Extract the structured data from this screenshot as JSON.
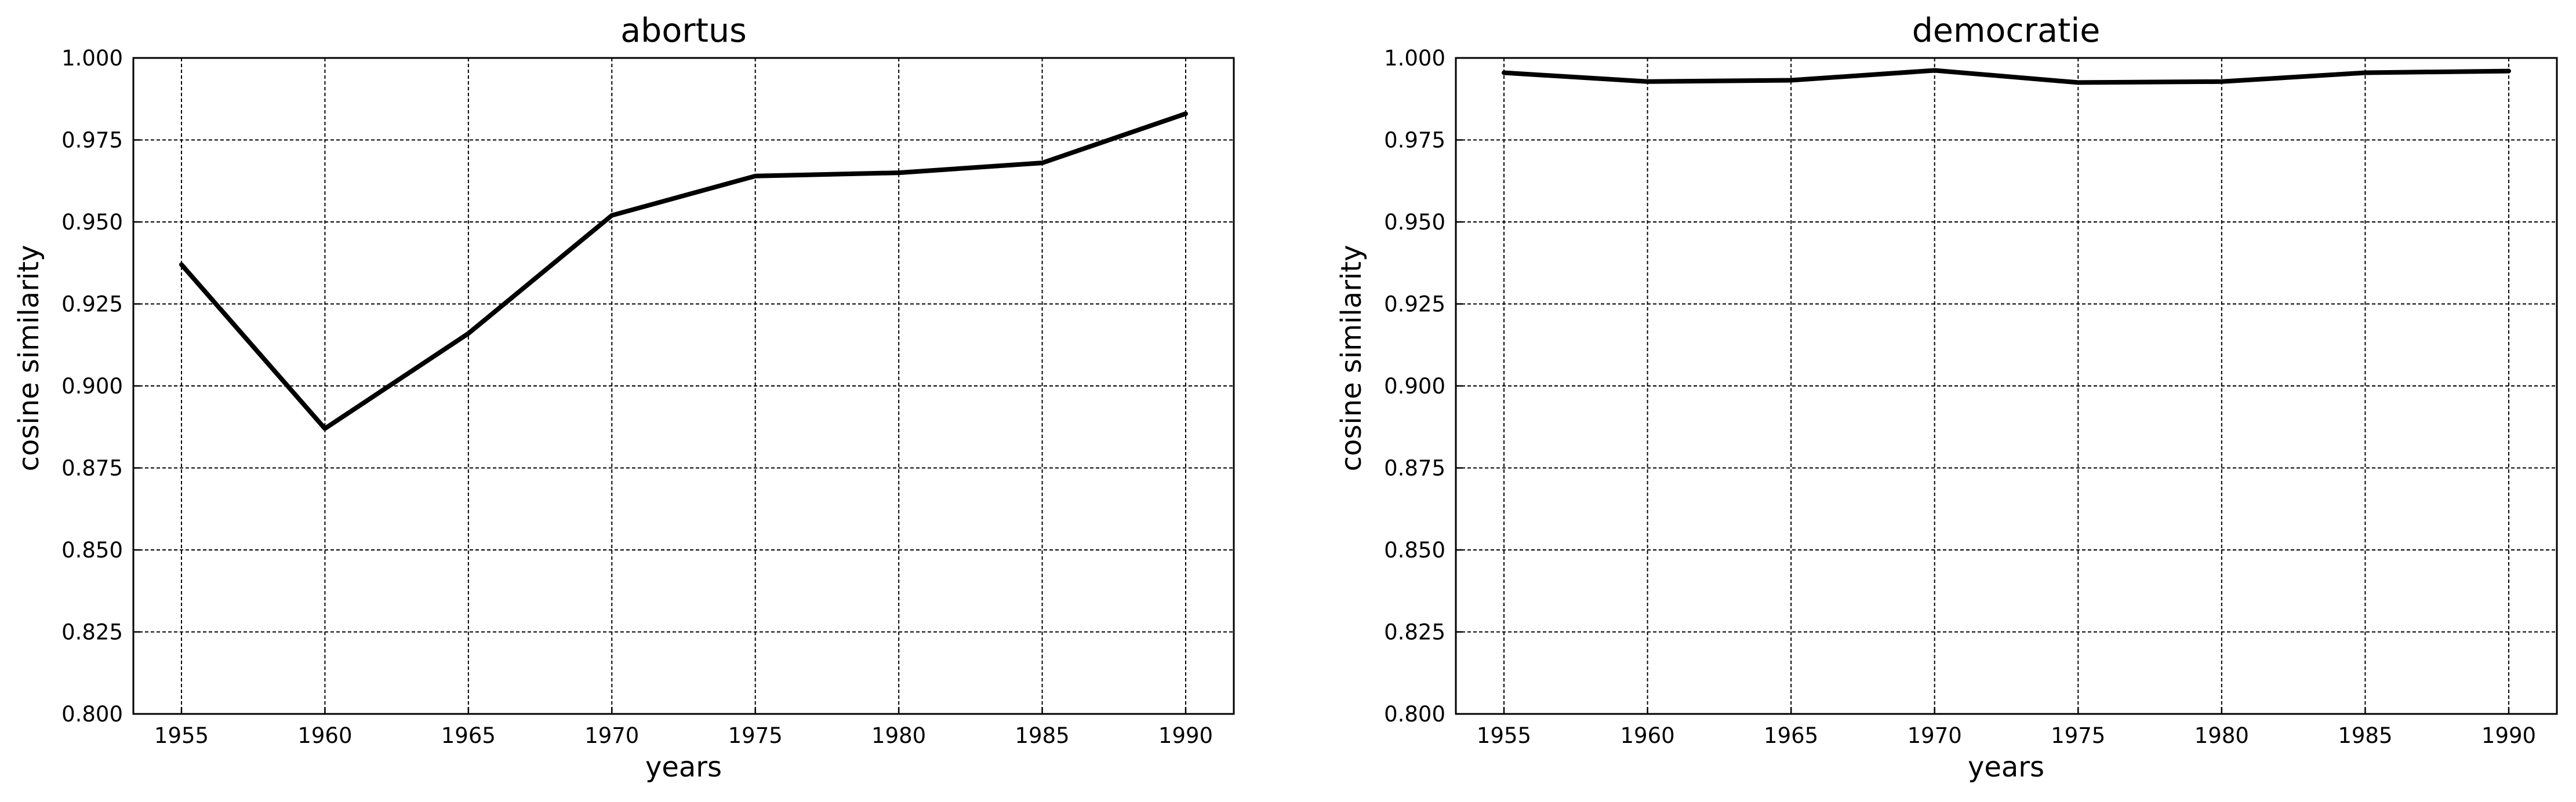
{
  "chart_data": [
    {
      "type": "line",
      "title": "abortus",
      "xlabel": "years",
      "ylabel": "cosine similarity",
      "x": [
        1955,
        1960,
        1965,
        1970,
        1975,
        1980,
        1985,
        1990
      ],
      "x_tick_labels": [
        "1955",
        "1960",
        "1965",
        "1970",
        "1975",
        "1980",
        "1985",
        "1990"
      ],
      "ylim": [
        0.8,
        1.0
      ],
      "y_ticks": [
        0.8,
        0.825,
        0.85,
        0.875,
        0.9,
        0.925,
        0.95,
        0.975,
        1.0
      ],
      "y_tick_labels": [
        "0.800",
        "0.825",
        "0.850",
        "0.875",
        "0.900",
        "0.925",
        "0.950",
        "0.975",
        "1.000"
      ],
      "grid": true,
      "series": [
        {
          "values": [
            0.937,
            0.887,
            0.916,
            0.952,
            0.964,
            0.965,
            0.968,
            0.983
          ],
          "color": "#000000"
        }
      ]
    },
    {
      "type": "line",
      "title": "democratie",
      "xlabel": "years",
      "ylabel": "cosine similarity",
      "x": [
        1955,
        1960,
        1965,
        1970,
        1975,
        1980,
        1985,
        1990
      ],
      "x_tick_labels": [
        "1955",
        "1960",
        "1965",
        "1970",
        "1975",
        "1980",
        "1985",
        "1990"
      ],
      "ylim": [
        0.8,
        1.0
      ],
      "y_ticks": [
        0.8,
        0.825,
        0.85,
        0.875,
        0.9,
        0.925,
        0.95,
        0.975,
        1.0
      ],
      "y_tick_labels": [
        "0.800",
        "0.825",
        "0.850",
        "0.875",
        "0.900",
        "0.925",
        "0.950",
        "0.975",
        "1.000"
      ],
      "grid": true,
      "series": [
        {
          "values": [
            0.9955,
            0.9928,
            0.9932,
            0.9962,
            0.9925,
            0.9928,
            0.9955,
            0.996
          ],
          "color": "#000000"
        }
      ]
    }
  ]
}
